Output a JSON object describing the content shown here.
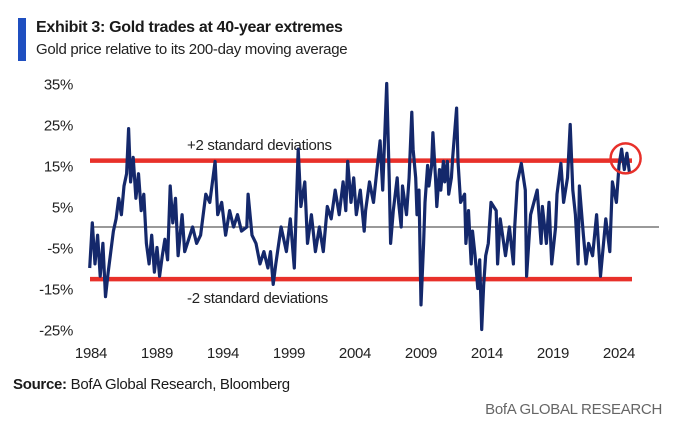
{
  "header": {
    "title": "Exhibit 3: Gold trades at 40-year extremes",
    "subtitle": "Gold price relative to its 200-day moving average",
    "accent_color": "#1f4fc0"
  },
  "footer": {
    "source_label": "Source:",
    "source_text": " BofA Global Research, Bloomberg",
    "brand": "BofA GLOBAL RESEARCH"
  },
  "chart_data": {
    "type": "line",
    "title": "Exhibit 3: Gold trades at 40-year extremes",
    "subtitle": "Gold price relative to its 200-day moving average",
    "xlabel": "",
    "ylabel": "",
    "xlim": [
      1984,
      2025
    ],
    "ylim": [
      -25,
      35
    ],
    "x_ticks": [
      1984,
      1989,
      1994,
      1999,
      2004,
      2009,
      2014,
      2019,
      2024
    ],
    "x_tick_labels": [
      "1984",
      "1989",
      "1994",
      "1999",
      "2004",
      "2009",
      "2014",
      "2019",
      "2024"
    ],
    "y_ticks": [
      35,
      25,
      15,
      5,
      -5,
      -15,
      -25
    ],
    "y_tick_labels": [
      "35%",
      "25%",
      "15%",
      "5%",
      "-5%",
      "-15%",
      "-25%"
    ],
    "grid": false,
    "legend": "none",
    "zero_line": 0,
    "series_color": "#14286b",
    "band_color": "#e8302a",
    "reference_lines": [
      {
        "name": "+2 standard deviations",
        "value": 16.2,
        "label": "+2 standard deviations"
      },
      {
        "name": "-2 standard deviations",
        "value": -12.7,
        "label": "-2 standard deviations"
      }
    ],
    "annotations": [
      {
        "type": "circle",
        "label": "latest reading highlighted",
        "x": 2024.5,
        "y": 16.5
      }
    ],
    "series": [
      {
        "name": "Gold price relative to 200-day moving average (%)",
        "points": [
          [
            1983.9,
            -10
          ],
          [
            1984.1,
            1
          ],
          [
            1984.3,
            -9
          ],
          [
            1984.5,
            -2
          ],
          [
            1984.7,
            -12
          ],
          [
            1984.9,
            -4
          ],
          [
            1985.1,
            -17
          ],
          [
            1985.3,
            -11
          ],
          [
            1985.5,
            -6
          ],
          [
            1985.7,
            -1
          ],
          [
            1985.9,
            2
          ],
          [
            1986.1,
            7
          ],
          [
            1986.3,
            3
          ],
          [
            1986.5,
            10
          ],
          [
            1986.7,
            13
          ],
          [
            1986.85,
            24
          ],
          [
            1987.0,
            11
          ],
          [
            1987.2,
            17
          ],
          [
            1987.4,
            7
          ],
          [
            1987.6,
            13
          ],
          [
            1987.8,
            4
          ],
          [
            1988.0,
            8
          ],
          [
            1988.2,
            -4
          ],
          [
            1988.4,
            -9
          ],
          [
            1988.6,
            -2
          ],
          [
            1988.8,
            -11
          ],
          [
            1989.0,
            -5
          ],
          [
            1989.2,
            -12
          ],
          [
            1989.4,
            -7
          ],
          [
            1989.6,
            -3
          ],
          [
            1989.8,
            -8
          ],
          [
            1990.0,
            10
          ],
          [
            1990.2,
            1
          ],
          [
            1990.4,
            7
          ],
          [
            1990.6,
            -7
          ],
          [
            1990.9,
            3
          ],
          [
            1991.1,
            -6
          ],
          [
            1991.4,
            -3
          ],
          [
            1991.7,
            0
          ],
          [
            1992.0,
            -4
          ],
          [
            1992.3,
            -2
          ],
          [
            1992.7,
            8
          ],
          [
            1993.0,
            6
          ],
          [
            1993.4,
            16
          ],
          [
            1993.6,
            3
          ],
          [
            1993.9,
            6
          ],
          [
            1994.2,
            -2
          ],
          [
            1994.5,
            4
          ],
          [
            1994.8,
            0
          ],
          [
            1995.1,
            3
          ],
          [
            1995.4,
            -1
          ],
          [
            1995.8,
            0
          ],
          [
            1995.9,
            8
          ],
          [
            1996.2,
            -2
          ],
          [
            1996.5,
            -4
          ],
          [
            1996.8,
            -9
          ],
          [
            1997.1,
            -6
          ],
          [
            1997.4,
            -10
          ],
          [
            1997.6,
            -6
          ],
          [
            1997.8,
            -14
          ],
          [
            1998.0,
            -9
          ],
          [
            1998.4,
            0
          ],
          [
            1998.8,
            -6
          ],
          [
            1999.1,
            2
          ],
          [
            1999.4,
            -10
          ],
          [
            1999.7,
            19
          ],
          [
            1999.9,
            5
          ],
          [
            2000.2,
            11
          ],
          [
            2000.4,
            -4
          ],
          [
            2000.7,
            3
          ],
          [
            2001.0,
            -6
          ],
          [
            2001.3,
            0
          ],
          [
            2001.6,
            -6
          ],
          [
            2001.9,
            5
          ],
          [
            2002.2,
            2
          ],
          [
            2002.5,
            9
          ],
          [
            2002.8,
            3
          ],
          [
            2003.1,
            11
          ],
          [
            2003.3,
            4
          ],
          [
            2003.45,
            16
          ],
          [
            2003.7,
            6
          ],
          [
            2003.9,
            12
          ],
          [
            2004.1,
            3
          ],
          [
            2004.4,
            9
          ],
          [
            2004.7,
            -1
          ],
          [
            2004.8,
            4
          ],
          [
            2005.1,
            11
          ],
          [
            2005.4,
            6
          ],
          [
            2005.7,
            15
          ],
          [
            2005.9,
            21
          ],
          [
            2006.1,
            9
          ],
          [
            2006.4,
            35
          ],
          [
            2006.6,
            11
          ],
          [
            2006.7,
            -4
          ],
          [
            2006.9,
            4
          ],
          [
            2007.2,
            12
          ],
          [
            2007.3,
            6
          ],
          [
            2007.5,
            0
          ],
          [
            2007.6,
            10
          ],
          [
            2007.9,
            3
          ],
          [
            2008.1,
            12
          ],
          [
            2008.3,
            28
          ],
          [
            2008.4,
            19
          ],
          [
            2008.6,
            12
          ],
          [
            2008.7,
            3
          ],
          [
            2008.85,
            9
          ],
          [
            2009.0,
            -19
          ],
          [
            2009.2,
            -4
          ],
          [
            2009.3,
            6
          ],
          [
            2009.5,
            15
          ],
          [
            2009.6,
            10
          ],
          [
            2009.8,
            15
          ],
          [
            2009.9,
            23
          ],
          [
            2010.1,
            12
          ],
          [
            2010.2,
            5
          ],
          [
            2010.4,
            14
          ],
          [
            2010.5,
            9
          ],
          [
            2010.7,
            16
          ],
          [
            2010.8,
            11
          ],
          [
            2011.0,
            16
          ],
          [
            2011.1,
            8
          ],
          [
            2011.3,
            12
          ],
          [
            2011.4,
            17
          ],
          [
            2011.7,
            29
          ],
          [
            2011.8,
            16
          ],
          [
            2012.0,
            6
          ],
          [
            2012.3,
            8
          ],
          [
            2012.4,
            -4
          ],
          [
            2012.6,
            4
          ],
          [
            2012.8,
            -9
          ],
          [
            2012.9,
            -1
          ],
          [
            2013.1,
            -7
          ],
          [
            2013.3,
            -15
          ],
          [
            2013.45,
            -8
          ],
          [
            2013.6,
            -25
          ],
          [
            2013.75,
            -14
          ],
          [
            2013.9,
            -7
          ],
          [
            2014.1,
            -4
          ],
          [
            2014.3,
            6
          ],
          [
            2014.7,
            4
          ],
          [
            2014.8,
            -9
          ],
          [
            2015.0,
            2
          ],
          [
            2015.4,
            -7
          ],
          [
            2015.7,
            0
          ],
          [
            2016.0,
            -9
          ],
          [
            2016.1,
            0
          ],
          [
            2016.3,
            11
          ],
          [
            2016.6,
            15.5
          ],
          [
            2016.9,
            9
          ],
          [
            2017.0,
            -12
          ],
          [
            2017.3,
            3
          ],
          [
            2017.8,
            9
          ],
          [
            2018.1,
            -4
          ],
          [
            2018.2,
            5
          ],
          [
            2018.5,
            -4
          ],
          [
            2018.7,
            6
          ],
          [
            2018.9,
            -9
          ],
          [
            2019.2,
            0
          ],
          [
            2019.3,
            8
          ],
          [
            2019.6,
            15.5
          ],
          [
            2019.8,
            6
          ],
          [
            2020.1,
            12
          ],
          [
            2020.3,
            25
          ],
          [
            2020.5,
            9
          ],
          [
            2020.7,
            3
          ],
          [
            2020.9,
            -9
          ],
          [
            2021.0,
            10
          ],
          [
            2021.3,
            -2
          ],
          [
            2021.5,
            -9
          ],
          [
            2021.7,
            -4
          ],
          [
            2022.0,
            -7
          ],
          [
            2022.3,
            3
          ],
          [
            2022.6,
            -12
          ],
          [
            2023.0,
            2
          ],
          [
            2023.3,
            -6
          ],
          [
            2023.5,
            11
          ],
          [
            2023.8,
            6
          ],
          [
            2024.0,
            15
          ],
          [
            2024.2,
            19
          ],
          [
            2024.4,
            14
          ],
          [
            2024.6,
            18
          ],
          [
            2024.8,
            13
          ]
        ]
      }
    ]
  }
}
